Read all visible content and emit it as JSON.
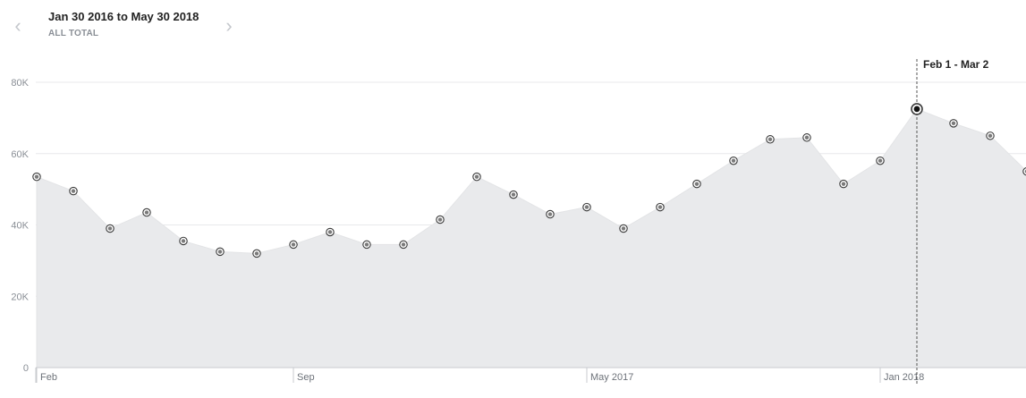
{
  "header": {
    "date_range": "Jan 30 2016 to May 30 2018",
    "subtitle": "ALL TOTAL",
    "prev_icon": "chevron-left-icon",
    "next_icon": "chevron-right-icon"
  },
  "marker": {
    "label": "Feb 1 - Mar 2"
  },
  "chart_data": {
    "type": "area",
    "title": "",
    "xlabel": "",
    "ylabel": "",
    "ylim": [
      0,
      80000
    ],
    "y_ticks": [
      {
        "value": 0,
        "label": "0"
      },
      {
        "value": 20000,
        "label": "20K"
      },
      {
        "value": 40000,
        "label": "40K"
      },
      {
        "value": 60000,
        "label": "60K"
      },
      {
        "value": 80000,
        "label": "80K"
      }
    ],
    "x_tick_labels": [
      {
        "index": 0,
        "label": "Feb"
      },
      {
        "index": 7,
        "label": "Sep"
      },
      {
        "index": 15,
        "label": "May 2017"
      },
      {
        "index": 23,
        "label": "Jan 2018"
      }
    ],
    "grid": true,
    "highlight_index": 24,
    "fill_color": "#e9eaec",
    "line_color": "#e3e4e6",
    "point_color": "#3a3a3a",
    "values": [
      53500,
      49500,
      39000,
      43500,
      35500,
      32500,
      32000,
      34500,
      38000,
      34500,
      34500,
      41500,
      53500,
      48500,
      43000,
      45000,
      39000,
      45000,
      51500,
      58000,
      64000,
      64500,
      51500,
      58000,
      72500,
      68500,
      65000,
      55000
    ]
  }
}
